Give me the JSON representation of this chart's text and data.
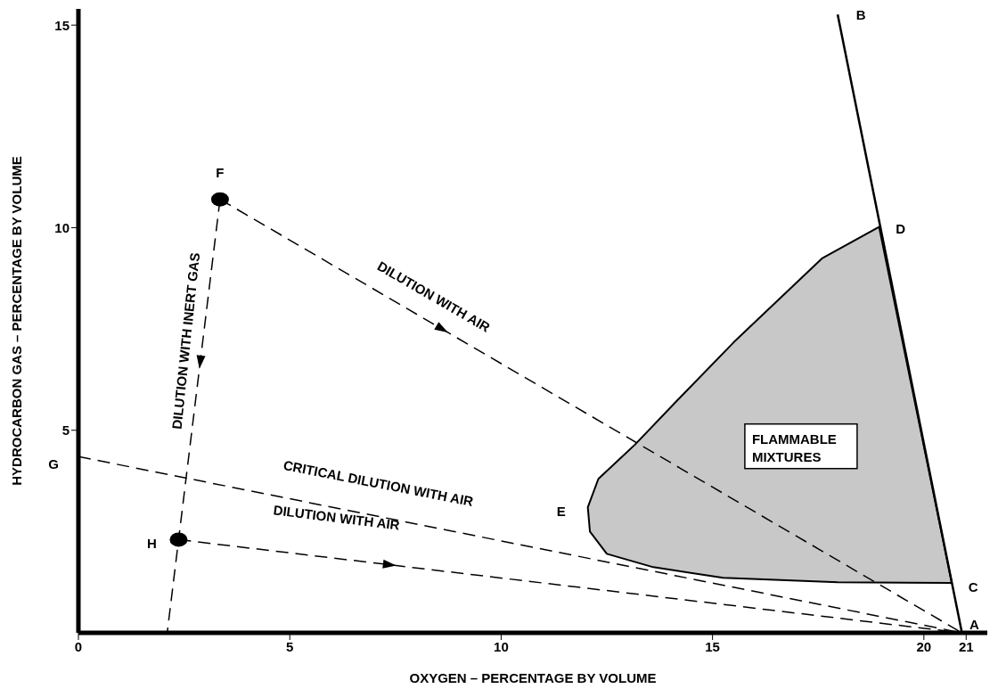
{
  "chart_data": {
    "type": "line",
    "xlabel": "OXYGEN – PERCENTAGE BY VOLUME",
    "ylabel": "HYDROCARBON GAS – PERCENTAGE BY VOLUME",
    "xlim": [
      0,
      21.5
    ],
    "ylim": [
      0,
      15.4
    ],
    "xticks": [
      0,
      5,
      10,
      15,
      20,
      21
    ],
    "yticks": [
      5,
      10,
      15
    ],
    "series": [
      {
        "line_style": "solid",
        "color": "#000000",
        "x": [
          20.9,
          17.96
        ],
        "values": [
          0,
          15.26
        ]
      },
      {
        "type": "area",
        "color": "#c8c8c8",
        "x": [
          18.94,
          17.6,
          15.5,
          14.15,
          13.17,
          12.3,
          12.05,
          12.1,
          12.5,
          13.6,
          15.25,
          17.96,
          20.66,
          18.94
        ],
        "values": [
          10.02,
          9.25,
          7.17,
          5.72,
          4.65,
          3.8,
          3.1,
          2.5,
          1.95,
          1.62,
          1.36,
          1.25,
          1.23,
          10.02
        ]
      },
      {
        "line_style": "dashed",
        "color": "#000000",
        "x": [
          3.35,
          20.9
        ],
        "values": [
          10.7,
          0
        ]
      },
      {
        "line_style": "dashed",
        "color": "#000000",
        "x": [
          3.35,
          2.37,
          2.1
        ],
        "values": [
          10.7,
          2.3,
          0
        ]
      },
      {
        "line_style": "dashed",
        "color": "#000000",
        "x": [
          2.37,
          20.9
        ],
        "values": [
          2.3,
          0
        ]
      },
      {
        "line_style": "dashed",
        "color": "#000000",
        "x": [
          0,
          20.9
        ],
        "values": [
          4.35,
          0
        ]
      },
      {
        "type": "scatter",
        "marker": "circle",
        "color": "#000000",
        "x": [
          3.35,
          2.37
        ],
        "values": [
          10.7,
          2.3
        ]
      }
    ],
    "annotations": [
      {
        "text": "A",
        "x": 20.9,
        "y": 0
      },
      {
        "text": "B",
        "x": 17.96,
        "y": 15.26
      },
      {
        "text": "C",
        "x": 20.66,
        "y": 1.23
      },
      {
        "text": "D",
        "x": 18.94,
        "y": 10.02
      },
      {
        "text": "E",
        "x": 12.05,
        "y": 3.1
      },
      {
        "text": "F",
        "x": 3.35,
        "y": 10.7
      },
      {
        "text": "G",
        "x": 0,
        "y": 4.35
      },
      {
        "text": "H",
        "x": 2.37,
        "y": 2.3
      },
      "DILUTION WITH AIR",
      "DILUTION WITH INERT GAS",
      "CRITICAL DILUTION WITH AIR",
      "DILUTION WITH AIR",
      "FLAMMABLE\nMIXTURES"
    ]
  }
}
